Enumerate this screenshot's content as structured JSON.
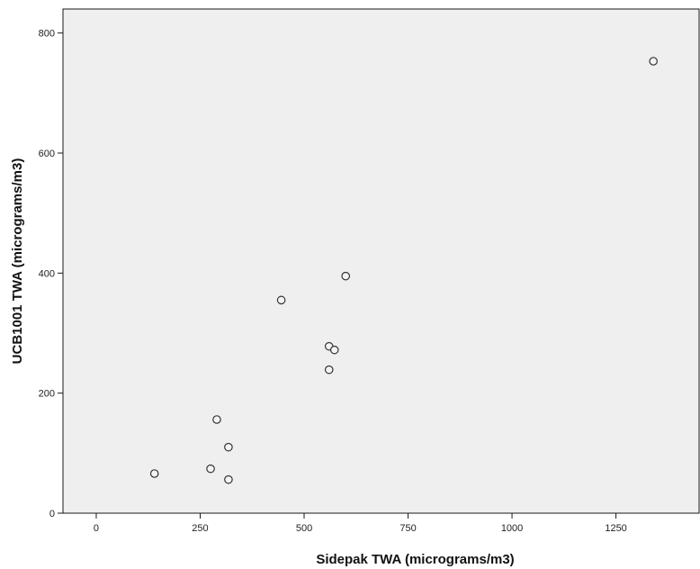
{
  "chart_data": {
    "type": "scatter",
    "title": "",
    "xlabel": "Sidepak TWA (micrograms/m3)",
    "ylabel": "UCB1001 TWA (micrograms/m3)",
    "xlim": [
      -80,
      1450
    ],
    "ylim": [
      0,
      840
    ],
    "xticks": [
      0,
      250,
      500,
      750,
      1000,
      1250
    ],
    "yticks": [
      0,
      200,
      400,
      600,
      800
    ],
    "grid": false,
    "legend": "none",
    "plot_background": "#efefef",
    "marker_color": "#333333",
    "points": [
      {
        "x": 140,
        "y": 66
      },
      {
        "x": 275,
        "y": 74
      },
      {
        "x": 290,
        "y": 156
      },
      {
        "x": 318,
        "y": 110
      },
      {
        "x": 318,
        "y": 56
      },
      {
        "x": 445,
        "y": 355
      },
      {
        "x": 560,
        "y": 278
      },
      {
        "x": 573,
        "y": 272
      },
      {
        "x": 560,
        "y": 239
      },
      {
        "x": 600,
        "y": 395
      },
      {
        "x": 1340,
        "y": 753
      }
    ]
  }
}
